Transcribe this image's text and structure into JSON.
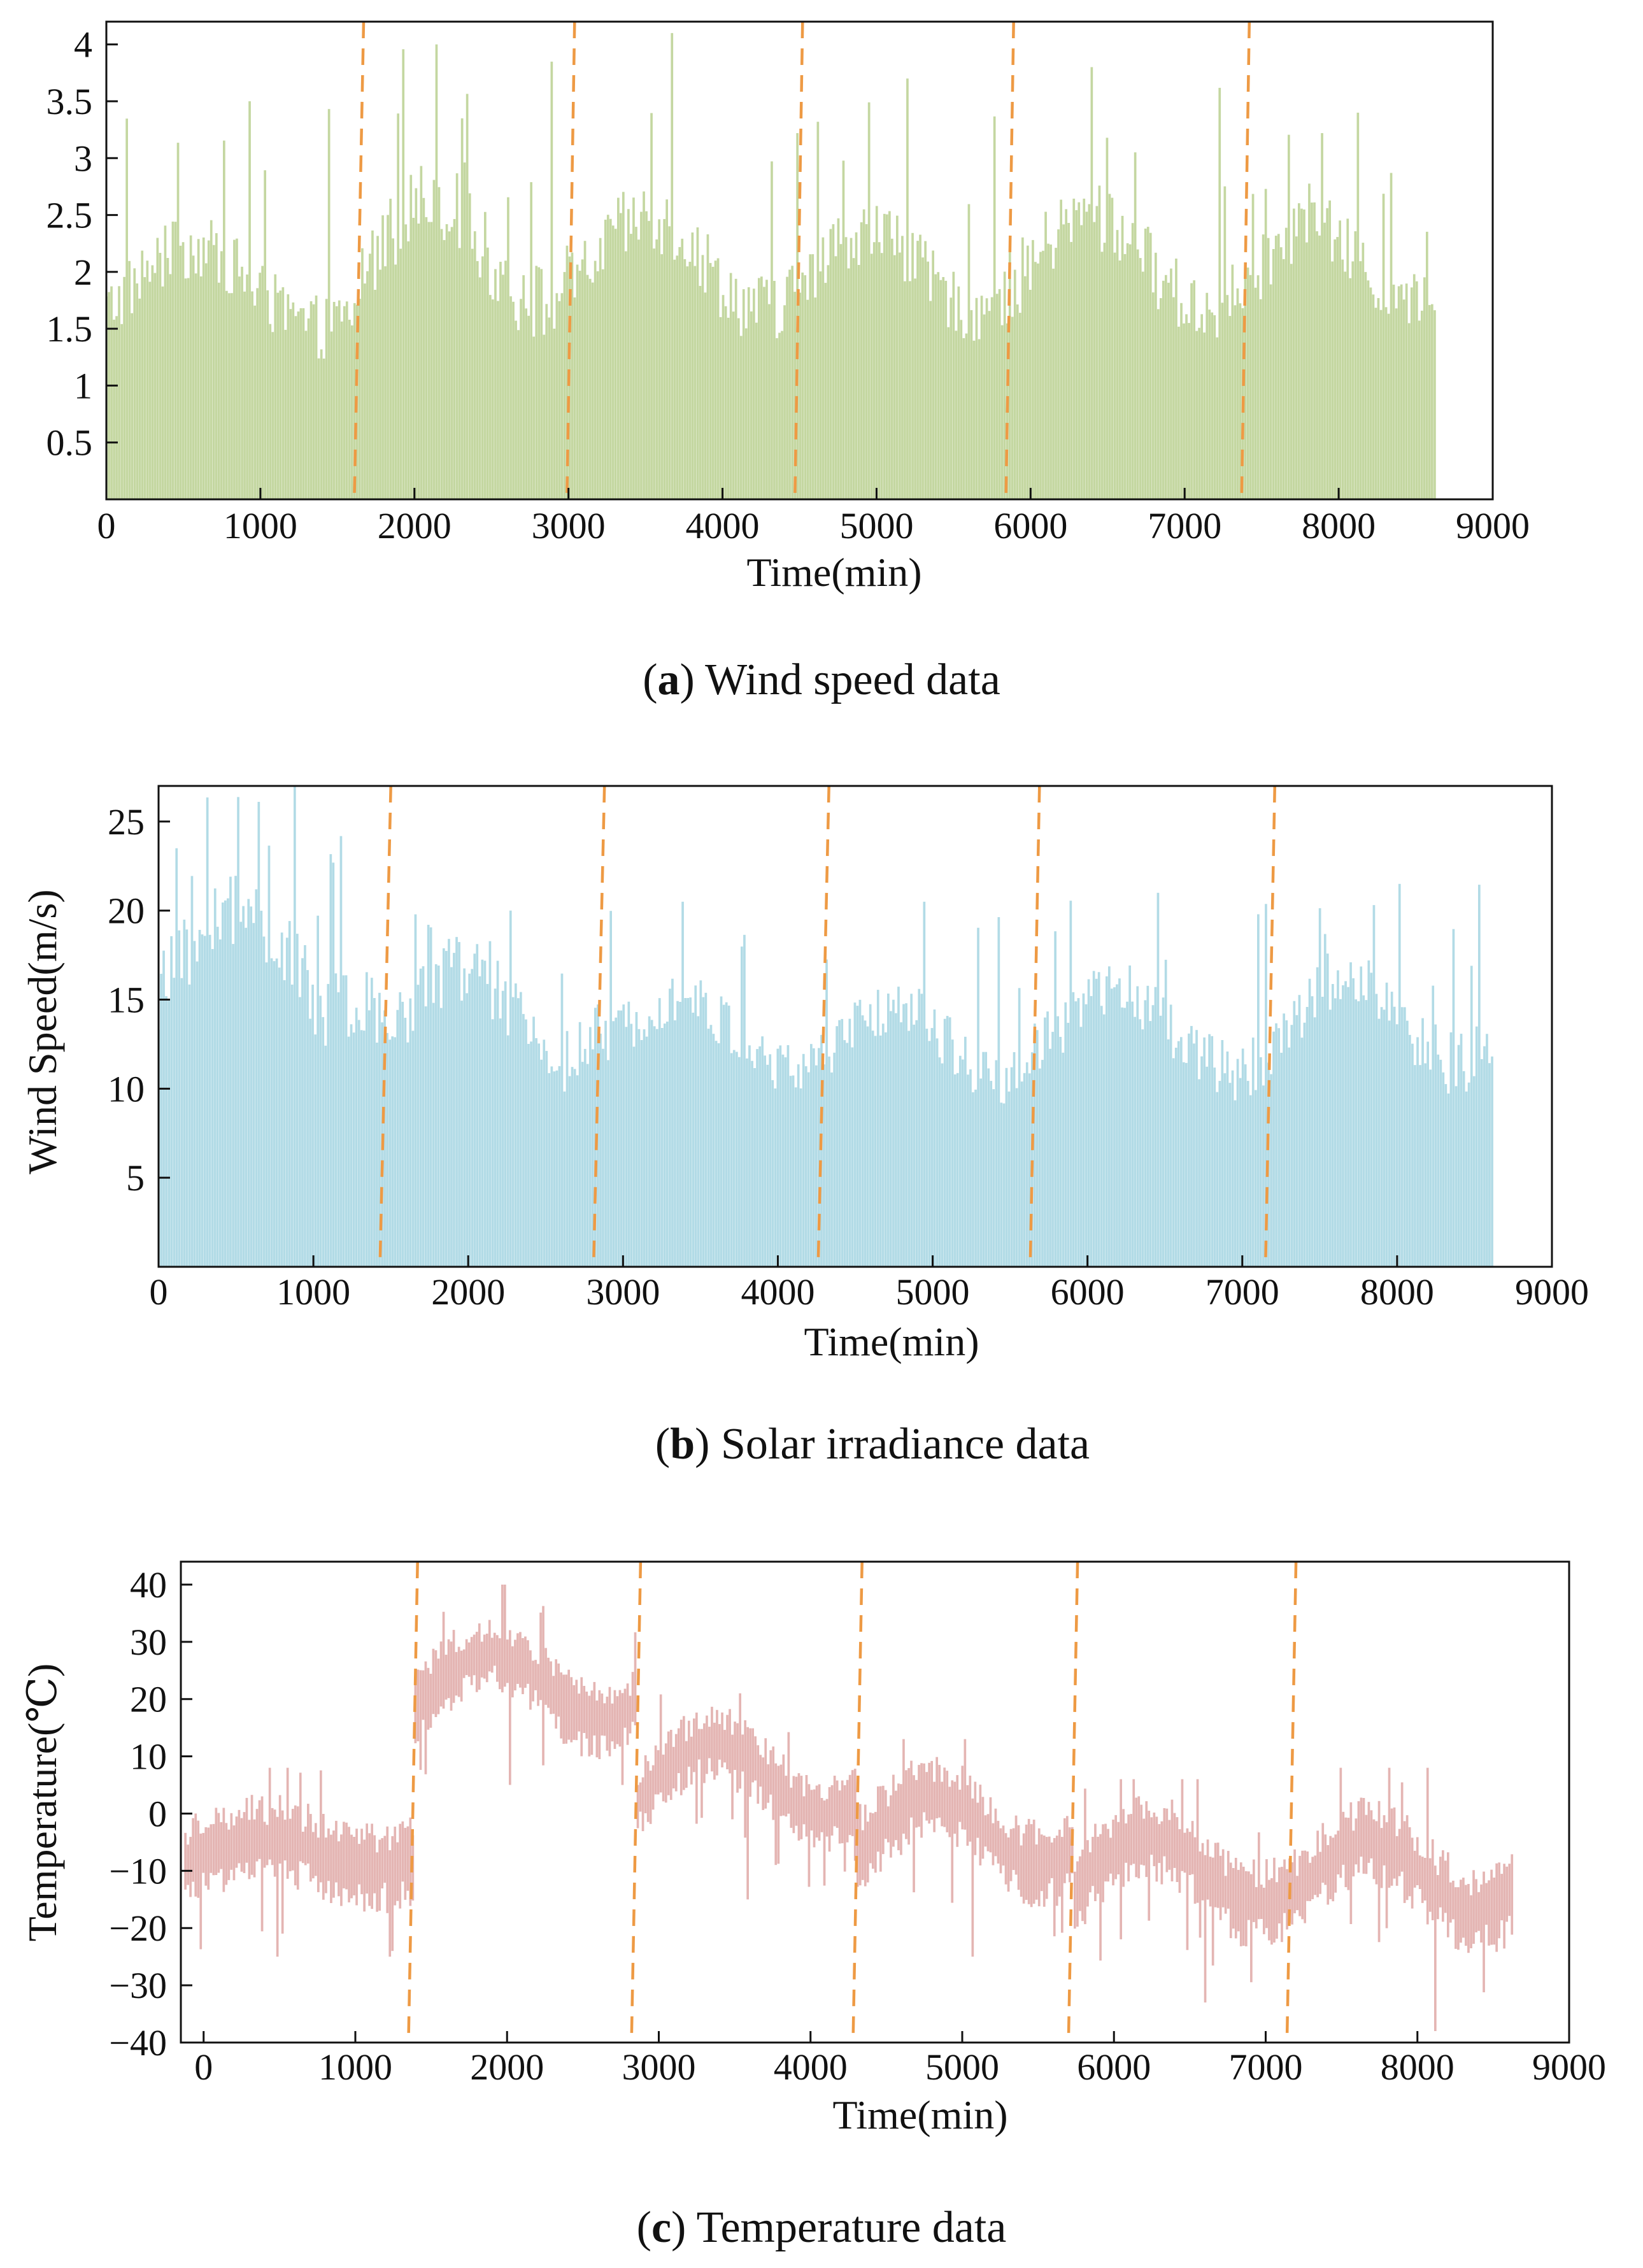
{
  "figure": {
    "split_color": "#ee9a44"
  },
  "chart_data": [
    {
      "id": "a",
      "type": "bar",
      "title": "Wind speed data",
      "caption_letter": "a",
      "xlabel": "Time(min)",
      "ylabel": "",
      "color": "#c4d7a1",
      "xlim": [
        0,
        9000
      ],
      "ylim": [
        0,
        4.2
      ],
      "xticks": [
        0,
        1000,
        2000,
        3000,
        4000,
        5000,
        6000,
        7000,
        8000,
        9000
      ],
      "xtick_labels": [
        "0",
        "1000",
        "2000",
        "3000",
        "4000",
        "5000",
        "6000",
        "7000",
        "8000",
        "9000"
      ],
      "yticks": [
        0.5,
        1,
        1.5,
        2,
        2.5,
        3,
        3.5,
        4
      ],
      "ytick_labels": [
        "0.5",
        "1",
        "1.5",
        "2",
        "2.5",
        "3",
        "3.5",
        "4"
      ],
      "series_x_end": 8640,
      "splits": [
        [
          1670,
          1610
        ],
        [
          3040,
          2990
        ],
        [
          4520,
          4470
        ],
        [
          5890,
          5840
        ],
        [
          7420,
          7370
        ]
      ],
      "segments": [
        {
          "x": [
            0,
            1630
          ],
          "base": 1.75,
          "amp": 0.35,
          "peak": 3.5,
          "floor": 0.0
        },
        {
          "x": [
            1630,
            3010
          ],
          "base": 2.05,
          "amp": 0.45,
          "peak": 4.0,
          "floor": 0.0
        },
        {
          "x": [
            3010,
            4490
          ],
          "base": 1.95,
          "amp": 0.4,
          "peak": 4.1,
          "floor": 0.0
        },
        {
          "x": [
            4490,
            5860
          ],
          "base": 1.9,
          "amp": 0.35,
          "peak": 3.7,
          "floor": 0.0
        },
        {
          "x": [
            5860,
            7390
          ],
          "base": 1.95,
          "amp": 0.4,
          "peak": 3.8,
          "floor": 0.0
        },
        {
          "x": [
            7390,
            8640
          ],
          "base": 1.95,
          "amp": 0.35,
          "peak": 3.4,
          "floor": 0.0
        }
      ]
    },
    {
      "id": "b",
      "type": "bar",
      "title": "Solar irradiance data",
      "caption_letter": "b",
      "xlabel": "Time(min)",
      "ylabel": "Wind Speed(m/s)",
      "color": "#b2dbe6",
      "xlim": [
        0,
        9000
      ],
      "ylim": [
        0,
        27
      ],
      "xticks": [
        0,
        1000,
        2000,
        3000,
        4000,
        5000,
        6000,
        7000,
        8000,
        9000
      ],
      "xtick_labels": [
        "0",
        "1000",
        "2000",
        "3000",
        "4000",
        "5000",
        "6000",
        "7000",
        "8000",
        "9000"
      ],
      "yticks": [
        5,
        10,
        15,
        20,
        25
      ],
      "ytick_labels": [
        "5",
        "10",
        "15",
        "20",
        "25"
      ],
      "series_x_end": 8630,
      "splits": [
        [
          1500,
          1430
        ],
        [
          2880,
          2810
        ],
        [
          4330,
          4260
        ],
        [
          5690,
          5630
        ],
        [
          7210,
          7150
        ]
      ],
      "segments": [
        {
          "x": [
            0,
            1460
          ],
          "base": 16.0,
          "amp": 3.0,
          "peak": 27.0,
          "floor": 0.0
        },
        {
          "x": [
            1460,
            2840
          ],
          "base": 13.5,
          "amp": 2.5,
          "peak": 20.0,
          "floor": 0.0
        },
        {
          "x": [
            2840,
            4290
          ],
          "base": 12.5,
          "amp": 2.0,
          "peak": 20.5,
          "floor": 0.0
        },
        {
          "x": [
            4290,
            5650
          ],
          "base": 12.0,
          "amp": 2.0,
          "peak": 20.5,
          "floor": 0.0
        },
        {
          "x": [
            5650,
            7180
          ],
          "base": 12.5,
          "amp": 2.2,
          "peak": 21.0,
          "floor": 0.0
        },
        {
          "x": [
            7180,
            8630
          ],
          "base": 13.0,
          "amp": 2.5,
          "peak": 21.5,
          "floor": 0.0
        }
      ]
    },
    {
      "id": "c",
      "type": "area",
      "title": "Temperature data",
      "caption_letter": "c",
      "xlabel": "Time(min)",
      "ylabel": "Temperature(℃)",
      "color": "#e4b5b3",
      "xlim": [
        -150,
        9000
      ],
      "ylim": [
        -40,
        44
      ],
      "xticks": [
        0,
        1000,
        2000,
        3000,
        4000,
        5000,
        6000,
        7000,
        8000,
        9000
      ],
      "xtick_labels": [
        "0",
        "1000",
        "2000",
        "3000",
        "4000",
        "5000",
        "6000",
        "7000",
        "8000",
        "9000"
      ],
      "yticks": [
        -40,
        -30,
        -20,
        -10,
        0,
        10,
        20,
        30,
        40
      ],
      "ytick_labels": [
        "−40",
        "−30",
        "−20",
        "−10",
        "0",
        "10",
        "20",
        "30",
        "40"
      ],
      "series_x_end": 8640,
      "splits": [
        [
          1410,
          1350
        ],
        [
          2880,
          2820
        ],
        [
          4340,
          4280
        ],
        [
          5760,
          5700
        ],
        [
          7200,
          7140
        ]
      ],
      "segments": [
        {
          "x": [
            -120,
            1380
          ],
          "base": -7.0,
          "amp": 2.5,
          "spread": 8.0,
          "peak": 8.0,
          "floor": -25.0
        },
        {
          "x": [
            1380,
            2850
          ],
          "base": 22.0,
          "amp": 6.0,
          "spread": 7.0,
          "peak": 40.0,
          "floor": 5.0
        },
        {
          "x": [
            2850,
            4310
          ],
          "base": 6.0,
          "amp": 6.0,
          "spread": 7.0,
          "peak": 21.0,
          "floor": -15.0
        },
        {
          "x": [
            4310,
            5730
          ],
          "base": -3.0,
          "amp": 6.0,
          "spread": 8.0,
          "peak": 13.0,
          "floor": -25.0
        },
        {
          "x": [
            5730,
            7170
          ],
          "base": -10.0,
          "amp": 6.0,
          "spread": 8.0,
          "peak": 6.0,
          "floor": -33.0
        },
        {
          "x": [
            7170,
            8640
          ],
          "base": -11.0,
          "amp": 6.0,
          "spread": 8.0,
          "peak": 8.0,
          "floor": -38.0
        }
      ]
    }
  ]
}
